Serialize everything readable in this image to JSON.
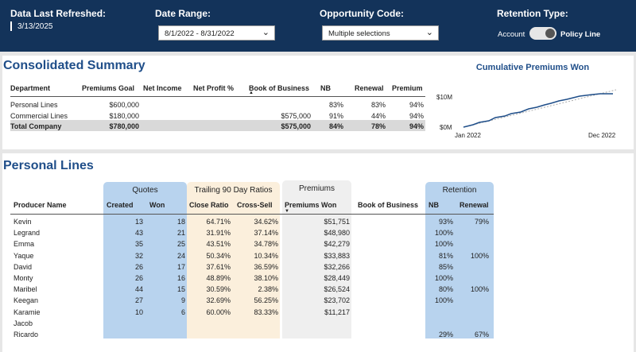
{
  "header": {
    "refreshed_label": "Data Last Refreshed:",
    "refreshed_value": "3/13/2025",
    "date_range_label": "Date Range:",
    "date_range_value": "8/1/2022 - 8/31/2022",
    "opportunity_label": "Opportunity Code:",
    "opportunity_value": "Multiple selections",
    "retention_label": "Retention Type:",
    "retention_left": "Account",
    "retention_right": "Policy Line"
  },
  "summary": {
    "title": "Consolidated Summary",
    "columns": [
      "Department",
      "Premiums Goal",
      "Net Income",
      "Net Profit %",
      "Book of Business",
      "NB",
      "Renewal",
      "Premium"
    ],
    "rows": [
      [
        "Personal Lines",
        "$600,000",
        null,
        null,
        null,
        "83%",
        "83%",
        "94%"
      ],
      [
        "Commercial Lines",
        "$180,000",
        null,
        null,
        "$575,000",
        "91%",
        "44%",
        "94%"
      ]
    ],
    "total": [
      "Total Company",
      "$780,000",
      null,
      null,
      "$575,000",
      "84%",
      "78%",
      "94%"
    ]
  },
  "chart": {
    "title": "Cumulative Premiums Won",
    "yticks": [
      "$10M",
      "$0M"
    ],
    "xticks": [
      "Jan 2022",
      "Dec 2022"
    ]
  },
  "personal": {
    "title": "Personal Lines",
    "groups": [
      "Quotes",
      "Trailing 90 Day Ratios",
      "Premiums",
      "Retention"
    ],
    "columns": [
      "Producer Name",
      "Created",
      "Won",
      "Close Ratio",
      "Cross-Sell",
      "Premiums Won",
      "Book of Business",
      "NB",
      "Renewal"
    ],
    "rows": [
      [
        "Kevin",
        "13",
        "18",
        "64.71%",
        "34.62%",
        "$51,751",
        null,
        "93%",
        "79%"
      ],
      [
        "Legrand",
        "43",
        "21",
        "31.91%",
        "37.14%",
        "$48,980",
        null,
        "100%",
        null
      ],
      [
        "Emma",
        "35",
        "25",
        "43.51%",
        "34.78%",
        "$42,279",
        null,
        "100%",
        null
      ],
      [
        "Yaque",
        "32",
        "24",
        "50.34%",
        "10.34%",
        "$33,883",
        null,
        "81%",
        "100%"
      ],
      [
        "David",
        "26",
        "17",
        "37.61%",
        "36.59%",
        "$32,266",
        null,
        "85%",
        null
      ],
      [
        "Monty",
        "26",
        "16",
        "48.89%",
        "38.10%",
        "$28,449",
        null,
        "100%",
        null
      ],
      [
        "Maribel",
        "44",
        "15",
        "30.59%",
        "2.38%",
        "$26,524",
        null,
        "80%",
        "100%"
      ],
      [
        "Keegan",
        "27",
        "9",
        "32.69%",
        "56.25%",
        "$23,702",
        null,
        "100%",
        null
      ],
      [
        "Karamie",
        "10",
        "6",
        "60.00%",
        "83.33%",
        "$11,217",
        null,
        null,
        null
      ],
      [
        "Jacob",
        null,
        null,
        null,
        null,
        null,
        null,
        null,
        null
      ],
      [
        "Ricardo",
        null,
        null,
        null,
        null,
        null,
        null,
        "29%",
        "67%"
      ]
    ]
  }
}
